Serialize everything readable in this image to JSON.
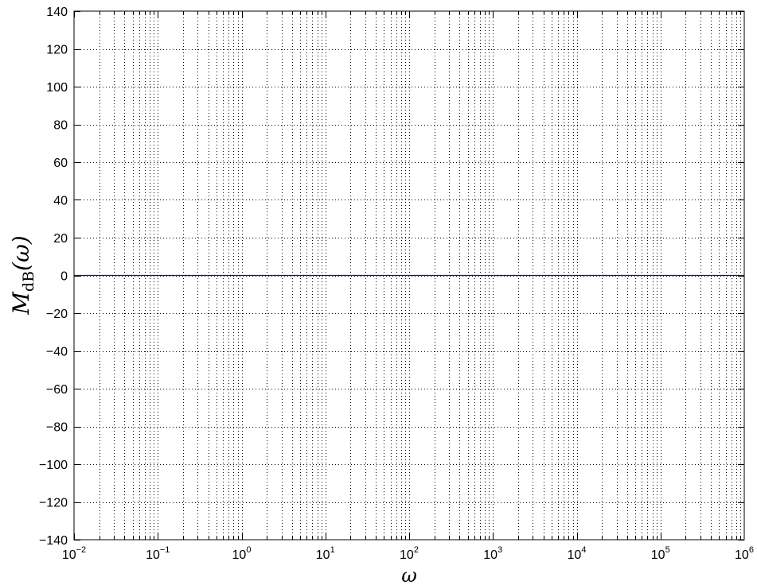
{
  "chart_data": {
    "type": "line",
    "xscale": "log",
    "xlim": [
      0.01,
      1000000
    ],
    "ylim": [
      -140,
      140
    ],
    "grid": true,
    "grid_style": "dotted",
    "x_ticks": [
      {
        "base": "10",
        "exp": "−2"
      },
      {
        "base": "10",
        "exp": "−1"
      },
      {
        "base": "10",
        "exp": "0"
      },
      {
        "base": "10",
        "exp": "1"
      },
      {
        "base": "10",
        "exp": "2"
      },
      {
        "base": "10",
        "exp": "3"
      },
      {
        "base": "10",
        "exp": "4"
      },
      {
        "base": "10",
        "exp": "5"
      },
      {
        "base": "10",
        "exp": "6"
      }
    ],
    "y_ticks": [
      "−140",
      "−120",
      "−100",
      "−80",
      "−60",
      "−40",
      "−20",
      "0",
      "20",
      "40",
      "60",
      "80",
      "100",
      "120",
      "140"
    ],
    "xlabel": "ω",
    "ylabel": {
      "main": "M",
      "sub": "dB",
      "arg": "(ω)"
    },
    "series": [
      {
        "color": "#0000ff",
        "x": [
          0.01,
          1000000
        ],
        "y": [
          0,
          0
        ]
      }
    ]
  }
}
